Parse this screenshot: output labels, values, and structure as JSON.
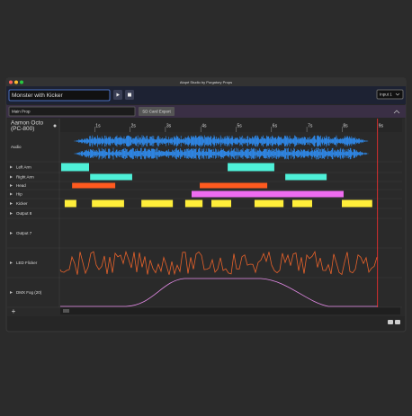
{
  "window_title": "Atopé Studio by Purgatory Props",
  "show_name": "Monster with Kicker",
  "input": "Input 1",
  "prop": "Main Prop",
  "export_button": "SD Card Export",
  "device": {
    "name": "Aamon Octo",
    "model": "(PC-800)"
  },
  "ruler": {
    "ticks": [
      {
        "value": 1,
        "label": "1s"
      },
      {
        "value": 2,
        "label": "2s"
      },
      {
        "value": 3,
        "label": "3s"
      },
      {
        "value": 4,
        "label": "4s"
      },
      {
        "value": 5,
        "label": "5s"
      },
      {
        "value": 6,
        "label": "6s"
      },
      {
        "value": 7,
        "label": "7s"
      },
      {
        "value": 8,
        "label": "8s"
      },
      {
        "value": 9,
        "label": "9s"
      }
    ]
  },
  "playhead": 9,
  "tracks": [
    {
      "name": "Audio"
    },
    {
      "name": "Left Arm",
      "color": "#4ef0d8",
      "blocks": [
        [
          0.05,
          0.84
        ],
        [
          4.76,
          6.08
        ]
      ]
    },
    {
      "name": "Right Arm",
      "color": "#4ef0d8",
      "blocks": [
        [
          0.87,
          2.06
        ],
        [
          6.39,
          7.56
        ]
      ]
    },
    {
      "name": "Head",
      "color": "#ff5a1f",
      "blocks": [
        [
          0.36,
          1.58
        ],
        [
          3.97,
          5.88
        ]
      ]
    },
    {
      "name": "Hip",
      "color": "#ee6cf0",
      "blocks": [
        [
          3.74,
          8.04
        ]
      ]
    },
    {
      "name": "Kicker",
      "color": "#ffee3a",
      "blocks": [
        [
          0.15,
          0.48
        ],
        [
          0.92,
          1.83
        ],
        [
          2.32,
          3.21
        ],
        [
          3.56,
          4.05
        ],
        [
          4.3,
          4.86
        ],
        [
          5.52,
          6.34
        ],
        [
          6.59,
          7.15
        ],
        [
          7.99,
          8.85
        ]
      ]
    },
    {
      "name": "Output 8"
    },
    {
      "name": "Output 7"
    },
    {
      "name": "LED Flicker"
    },
    {
      "name": "DMX Fog (20)"
    }
  ],
  "add_button": "+"
}
